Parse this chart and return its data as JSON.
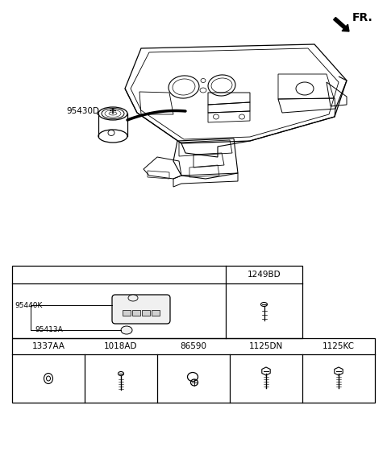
{
  "bg_color": "#ffffff",
  "fr_label": "FR.",
  "part_label": "95430D",
  "table": {
    "top_right_label": "1249BD",
    "key_label": "95440K",
    "chip_label": "95413A",
    "bottom_labels": [
      "1337AA",
      "1018AD",
      "86590",
      "1125DN",
      "1125KC"
    ]
  },
  "fig_w": 4.8,
  "fig_h": 5.7,
  "dpi": 100
}
